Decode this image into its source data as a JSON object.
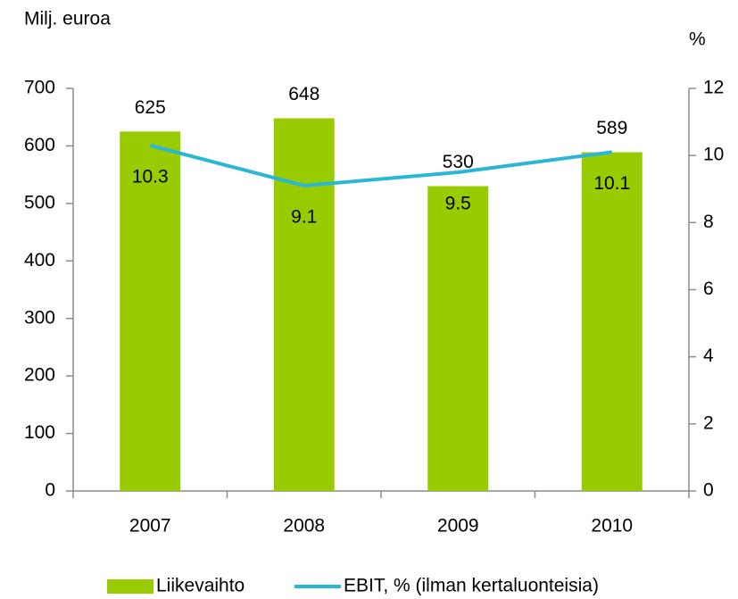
{
  "chart_data": {
    "type": "bar",
    "y_label": "Milj. euroa",
    "y2_label": "%",
    "categories": [
      "2007",
      "2008",
      "2009",
      "2010"
    ],
    "series": [
      {
        "name": "Liikevaihto",
        "type": "bar",
        "color": "#99cc00",
        "values": [
          625,
          648,
          530,
          589
        ]
      },
      {
        "name": "EBIT, % (ilman kertaluonteisia)",
        "type": "line",
        "axis": "y2",
        "color": "#2ab7d6",
        "values": [
          10.3,
          9.1,
          9.5,
          10.1
        ]
      }
    ],
    "ylim": [
      0,
      700
    ],
    "yticks": [
      0,
      100,
      200,
      300,
      400,
      500,
      600,
      700
    ],
    "y2lim": [
      0,
      12
    ],
    "y2ticks": [
      0,
      2,
      4,
      6,
      8,
      10,
      12
    ],
    "legend": "bottom"
  }
}
